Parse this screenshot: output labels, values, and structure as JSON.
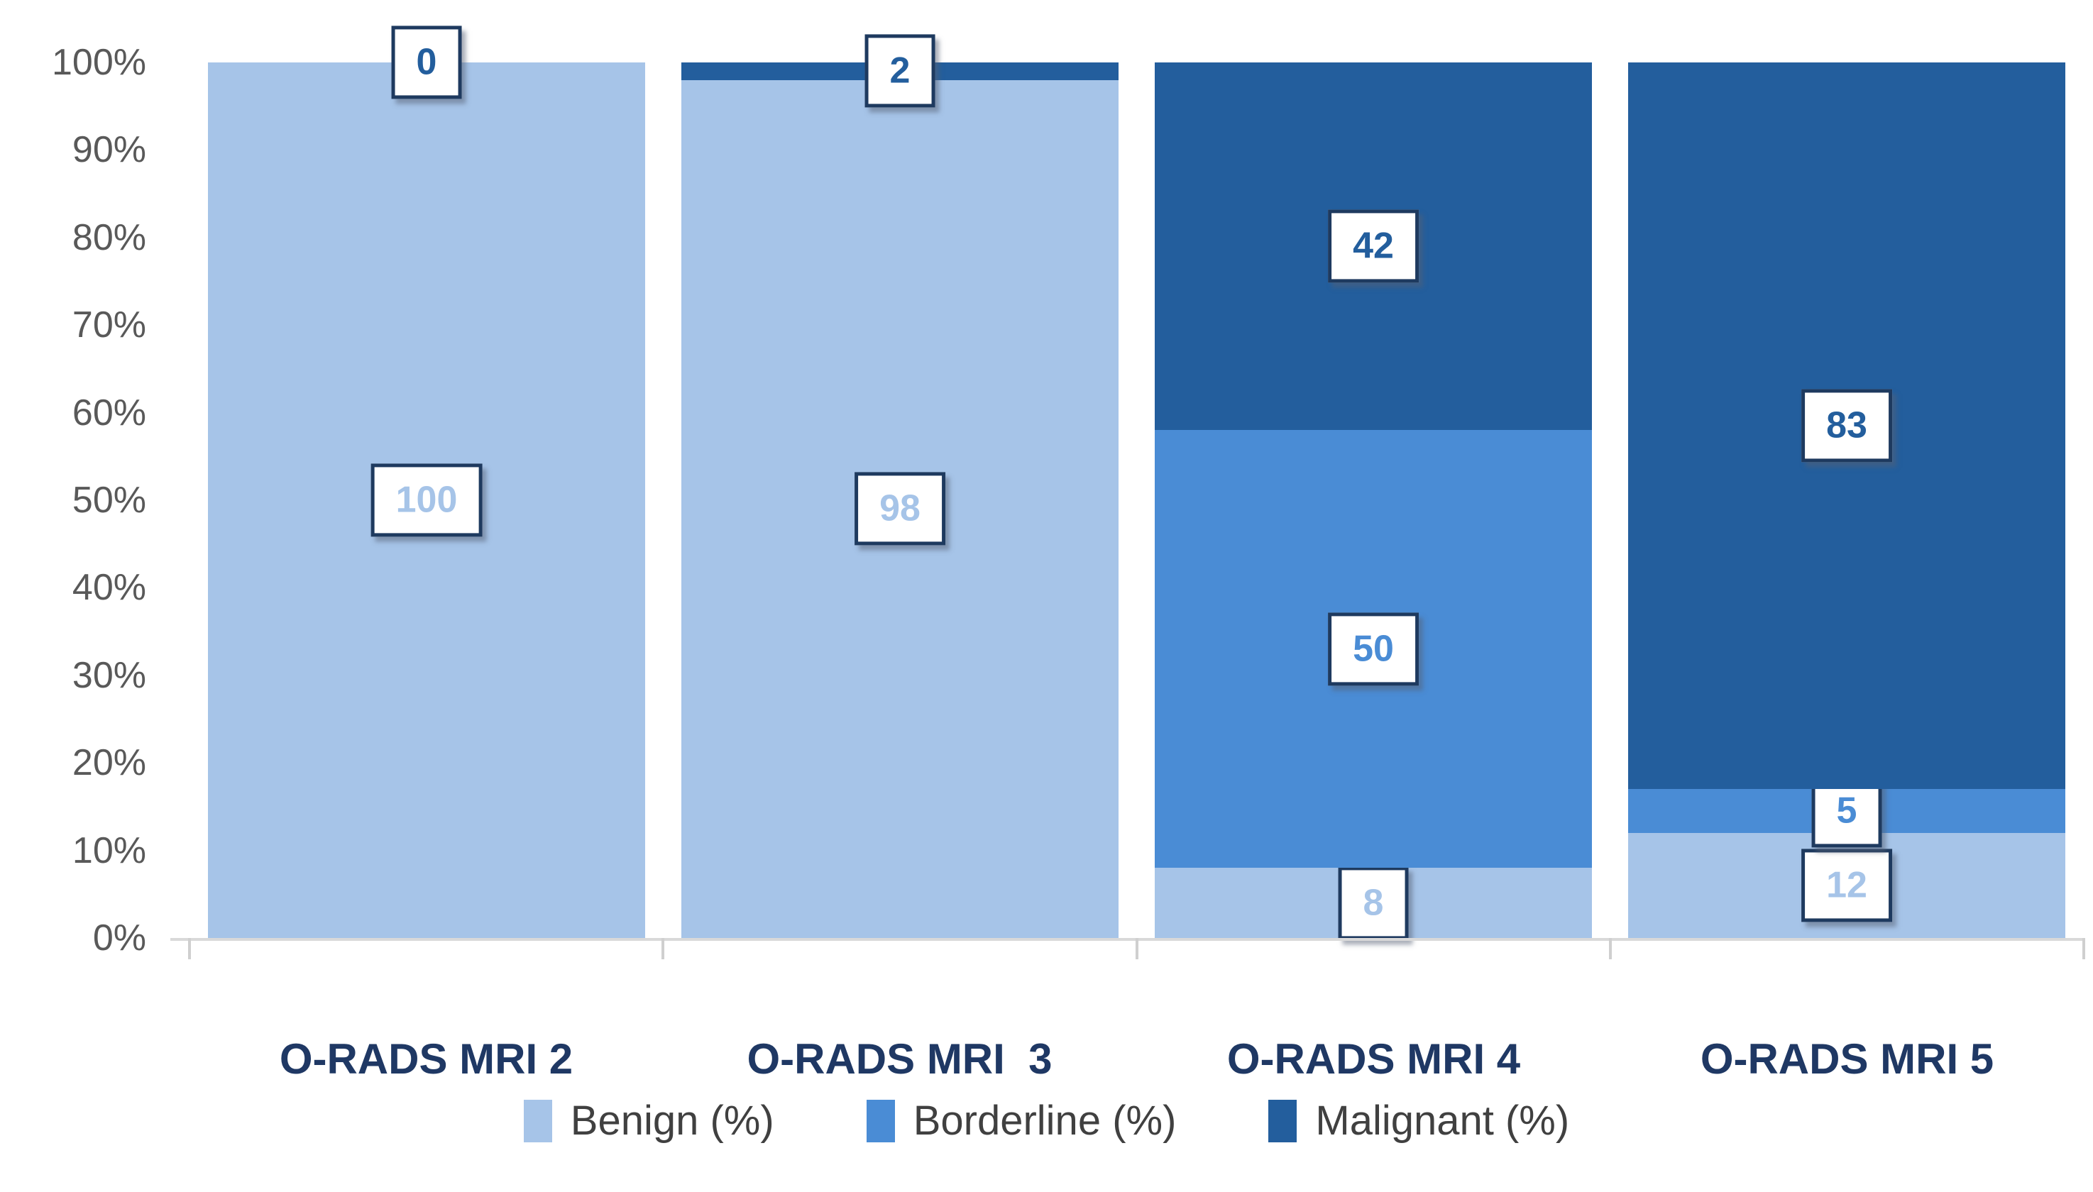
{
  "chart_data": {
    "type": "bar",
    "subtype": "stacked-100-percent-column",
    "title": "",
    "xlabel": "",
    "ylabel": "",
    "grid": false,
    "categories": [
      "O-RADS MRI 2",
      "O-RADS MRI  3",
      "O-RADS MRI 4",
      "O-RADS MRI 5"
    ],
    "series": [
      {
        "name": "Benign (%)",
        "color": "#A6C4E8",
        "values": [
          100,
          98,
          8,
          12
        ],
        "labels": [
          100,
          98,
          8,
          12
        ]
      },
      {
        "name": "Borderline (%)",
        "color": "#4A8CD5",
        "values": [
          0,
          0,
          50,
          5
        ],
        "labels": [
          null,
          null,
          50,
          5
        ]
      },
      {
        "name": "Malignant (%)",
        "color": "#235E9D",
        "values": [
          0,
          2,
          42,
          83
        ],
        "labels": [
          0,
          2,
          42,
          83
        ]
      }
    ],
    "y_axis": {
      "min": 0,
      "max": 100,
      "tick_step": 10,
      "tick_labels": [
        "0%",
        "10%",
        "20%",
        "30%",
        "40%",
        "50%",
        "60%",
        "70%",
        "80%",
        "90%",
        "100%"
      ]
    },
    "legend": {
      "position": "bottom",
      "items": [
        "Benign (%)",
        "Borderline (%)",
        "Malignant (%)"
      ]
    },
    "colors": {
      "background": "#FFFFFF",
      "label_box_background": "#FFFFFF",
      "label_box_border": "#1E3A5F",
      "axis_text": "#595959",
      "category_text": "#1F3864",
      "legend_text": "#404040",
      "baseline": "#D9D9D9",
      "tick_mark": "#CFCFCF"
    }
  }
}
